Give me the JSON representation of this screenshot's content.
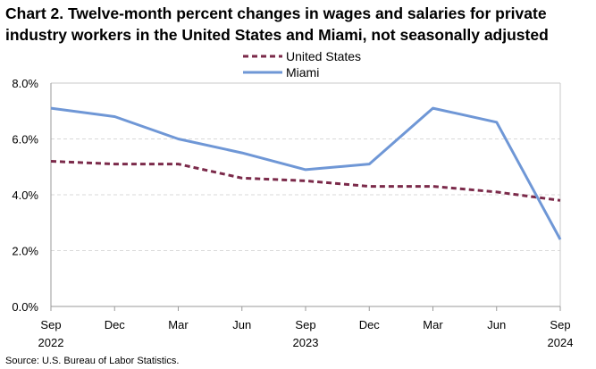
{
  "chart_data": {
    "type": "line",
    "title_line1": "Chart 2. Twelve-month percent changes in wages and salaries for private",
    "title_line2": "industry workers in the United States and Miami, not seasonally adjusted",
    "source": "Source: U.S. Bureau of Labor Statistics.",
    "x_ticks": [
      {
        "month": "Sep",
        "year": "2022"
      },
      {
        "month": "Dec",
        "year": ""
      },
      {
        "month": "Mar",
        "year": ""
      },
      {
        "month": "Jun",
        "year": ""
      },
      {
        "month": "Sep",
        "year": "2023"
      },
      {
        "month": "Dec",
        "year": ""
      },
      {
        "month": "Mar",
        "year": ""
      },
      {
        "month": "Jun",
        "year": ""
      },
      {
        "month": "Sep",
        "year": "2024"
      }
    ],
    "y_ticks": [
      "0.0%",
      "2.0%",
      "4.0%",
      "6.0%",
      "8.0%"
    ],
    "ylim": [
      0,
      8
    ],
    "grid": true,
    "legend_position": "top-center",
    "series": [
      {
        "name": "United States",
        "color": "#7b2a4a",
        "dash": true,
        "values": [
          5.2,
          5.1,
          5.1,
          4.6,
          4.5,
          4.3,
          4.3,
          4.1,
          3.8
        ]
      },
      {
        "name": "Miami",
        "color": "#6f97d6",
        "dash": false,
        "values": [
          7.1,
          6.8,
          6.0,
          5.5,
          4.9,
          5.1,
          7.1,
          6.6,
          2.4
        ]
      }
    ]
  }
}
